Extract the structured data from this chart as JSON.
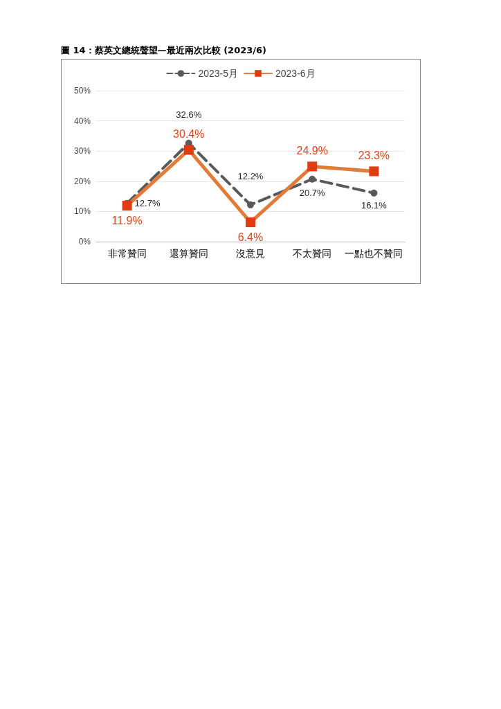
{
  "chart_data": {
    "type": "line",
    "title": "圖 14：蔡英文總統聲望—最近兩次比較  (2023/6)",
    "categories": [
      "非常贊同",
      "還算贊同",
      "沒意見",
      "不太贊同",
      "一點也不贊同"
    ],
    "series": [
      {
        "name": "2023-5月",
        "color": "#595959",
        "values": [
          12.7,
          32.6,
          12.2,
          20.7,
          16.1
        ],
        "value_labels": [
          "12.7%",
          "32.6%",
          "12.2%",
          "20.7%",
          "16.1%"
        ],
        "marker": "circle",
        "line_style": "dashed"
      },
      {
        "name": "2023-6月",
        "color": "#e07b39",
        "values": [
          11.9,
          30.4,
          6.4,
          24.9,
          23.3
        ],
        "value_labels": [
          "11.9%",
          "30.4%",
          "6.4%",
          "24.9%",
          "23.3%"
        ],
        "marker": "square",
        "line_style": "solid"
      }
    ],
    "ylim": [
      0,
      50
    ],
    "yticks": [
      {
        "value": 0,
        "label": "0%"
      },
      {
        "value": 10,
        "label": "10%"
      },
      {
        "value": 20,
        "label": "20%"
      },
      {
        "value": 30,
        "label": "30%"
      },
      {
        "value": 40,
        "label": "40%"
      },
      {
        "value": 50,
        "label": "50%"
      }
    ],
    "grid": "y",
    "legend": "top"
  }
}
